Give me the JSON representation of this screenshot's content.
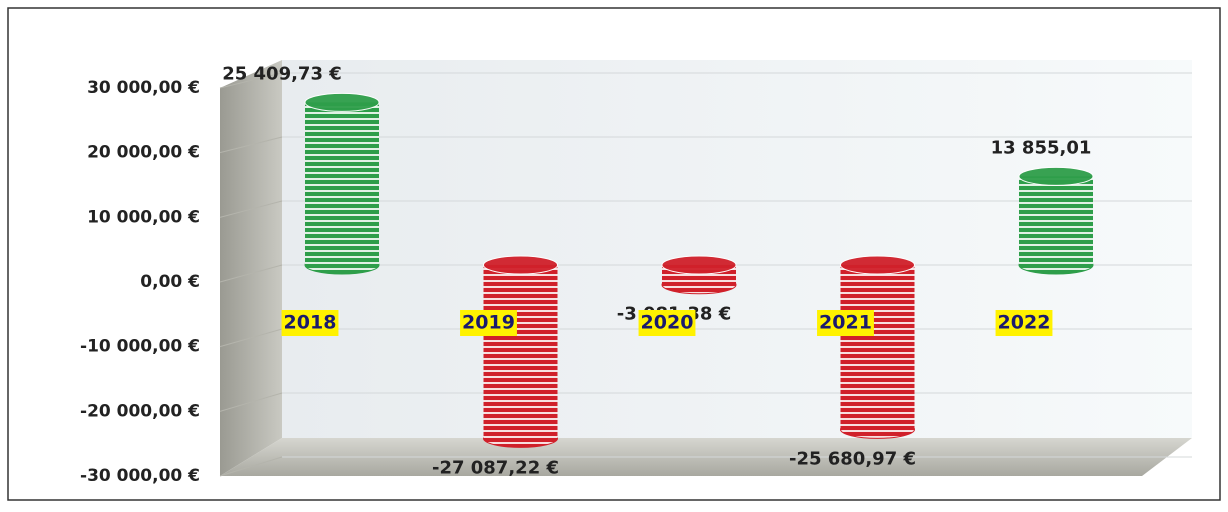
{
  "chart_data": {
    "type": "bar3d",
    "categories": [
      "2018",
      "2019",
      "2020",
      "2021",
      "2022"
    ],
    "values": [
      25409.73,
      -27087.22,
      -3081.38,
      -25680.97,
      13855.01
    ],
    "value_labels": [
      "25 409,73 €",
      "-27 087,22 €",
      "-3 081,38 €",
      "-25 680,97 €",
      "13 855,01"
    ],
    "colors": [
      "#2e9e4a",
      "#d0202a",
      "#d0202a",
      "#d0202a",
      "#2e9e4a"
    ],
    "ylim": [
      -30000,
      30000
    ],
    "yticks": [
      {
        "value": -30000,
        "label": "-30 000,00 €"
      },
      {
        "value": -20000,
        "label": "-20 000,00 €"
      },
      {
        "value": -10000,
        "label": "-10 000,00 €"
      },
      {
        "value": 0,
        "label": "0,00 €"
      },
      {
        "value": 10000,
        "label": "10 000,00 €"
      },
      {
        "value": 20000,
        "label": "20 000,00 €"
      },
      {
        "value": 30000,
        "label": "30 000,00 €"
      }
    ],
    "grid": true
  }
}
